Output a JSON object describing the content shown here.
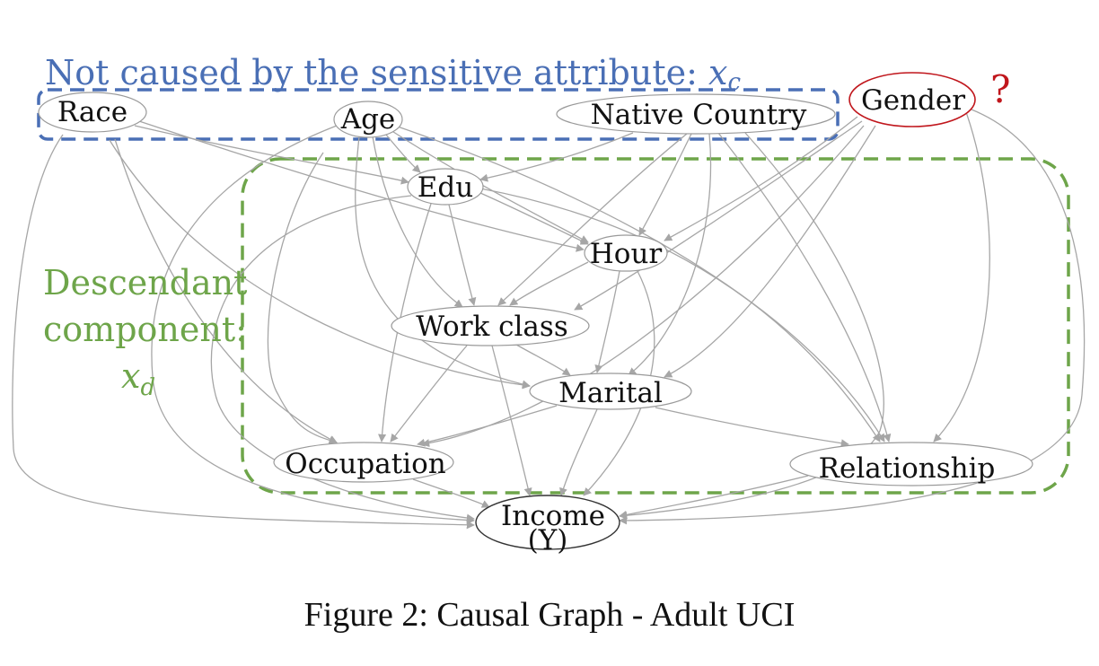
{
  "diagram": {
    "type": "causal-graph",
    "colors": {
      "edge": "#a6a6a6",
      "node_border": "#9a9a9a",
      "blue_group": "#4a6fb5",
      "green_group": "#6ea54a",
      "red_highlight": "#c0161c",
      "text": "#111111"
    },
    "nodes": {
      "race": "Race",
      "age": "Age",
      "native_country": "Native Country",
      "gender": "Gender",
      "edu": "Edu",
      "hour": "Hour",
      "work_class": "Work class",
      "marital": "Marital",
      "occupation": "Occupation",
      "relationship": "Relationship",
      "income": "Income",
      "income_sub": "(Y)"
    },
    "annotations": {
      "blue_label": "Not caused by the sensitive attribute: ",
      "blue_var": "x",
      "blue_sub": "c",
      "green_label_line1": "Descendant",
      "green_label_line2": "component:",
      "green_var": "x",
      "green_sub": "d",
      "question_mark": "?"
    },
    "caption": "Figure 2: Causal Graph - Adult UCI"
  }
}
